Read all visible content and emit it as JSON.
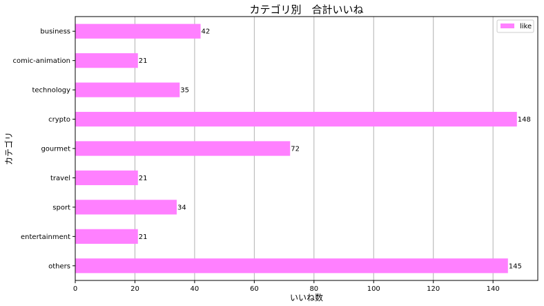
{
  "chart_data": {
    "type": "bar",
    "orientation": "horizontal",
    "title": "カテゴリ別　合計いいね",
    "xlabel": "いいね数",
    "ylabel": "カテゴリ",
    "categories": [
      "business",
      "comic-animation",
      "technology",
      "crypto",
      "gourmet",
      "travel",
      "sport",
      "entertainment",
      "others"
    ],
    "series": [
      {
        "name": "like",
        "values": [
          42,
          21,
          35,
          148,
          72,
          21,
          34,
          21,
          145
        ],
        "color": "#ff80ff"
      }
    ],
    "xlim": [
      0,
      155
    ],
    "xticks": [
      0,
      20,
      40,
      60,
      80,
      100,
      120,
      140
    ],
    "grid": "vertical",
    "legend_position": "top-right"
  }
}
